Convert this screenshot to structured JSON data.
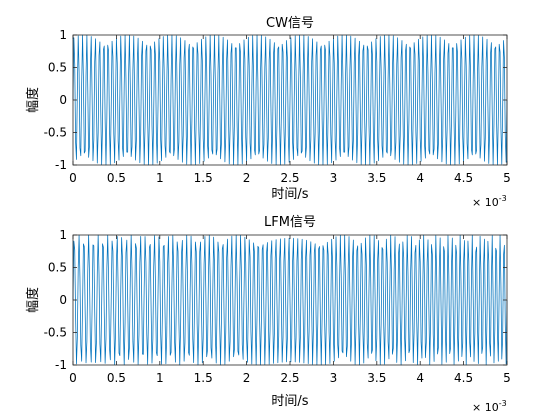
{
  "chart_data": [
    {
      "type": "line",
      "title": "CW信号",
      "xlabel": "时间/s",
      "ylabel": "幅度",
      "xlim": [
        0,
        5
      ],
      "ylim": [
        -1,
        1
      ],
      "xticks": [
        "0",
        "0.5",
        "1",
        "1.5",
        "2",
        "2.5",
        "3",
        "3.5",
        "4",
        "4.5",
        "5"
      ],
      "yticks": [
        "1",
        "0.5",
        "0",
        "-0.5",
        "-1"
      ],
      "x_exponent": {
        "base": "× 10",
        "power": "-3"
      },
      "series": [
        {
          "line_color": "#0072BD",
          "signal": "cw",
          "x_start": 0,
          "x_end": 5,
          "amplitude": 1,
          "cycles": 102,
          "samples": 500
        }
      ]
    },
    {
      "type": "line",
      "title": "LFM信号",
      "xlabel": "时间/s",
      "ylabel": "幅度",
      "xlim": [
        0,
        5
      ],
      "ylim": [
        -1,
        1
      ],
      "xticks": [
        "0",
        "0.5",
        "1",
        "1.5",
        "2",
        "2.5",
        "3",
        "3.5",
        "4",
        "4.5",
        "5"
      ],
      "yticks": [
        "1",
        "0.5",
        "0",
        "-0.5",
        "-1"
      ],
      "x_exponent": {
        "base": "× 10",
        "power": "-3"
      },
      "series": [
        {
          "line_color": "#0072BD",
          "signal": "lfm",
          "x_start": 0,
          "x_end": 5,
          "amplitude": 1,
          "start_cycles_per_unit": 18,
          "end_cycles_per_unit": 22,
          "samples": 500
        }
      ]
    }
  ]
}
